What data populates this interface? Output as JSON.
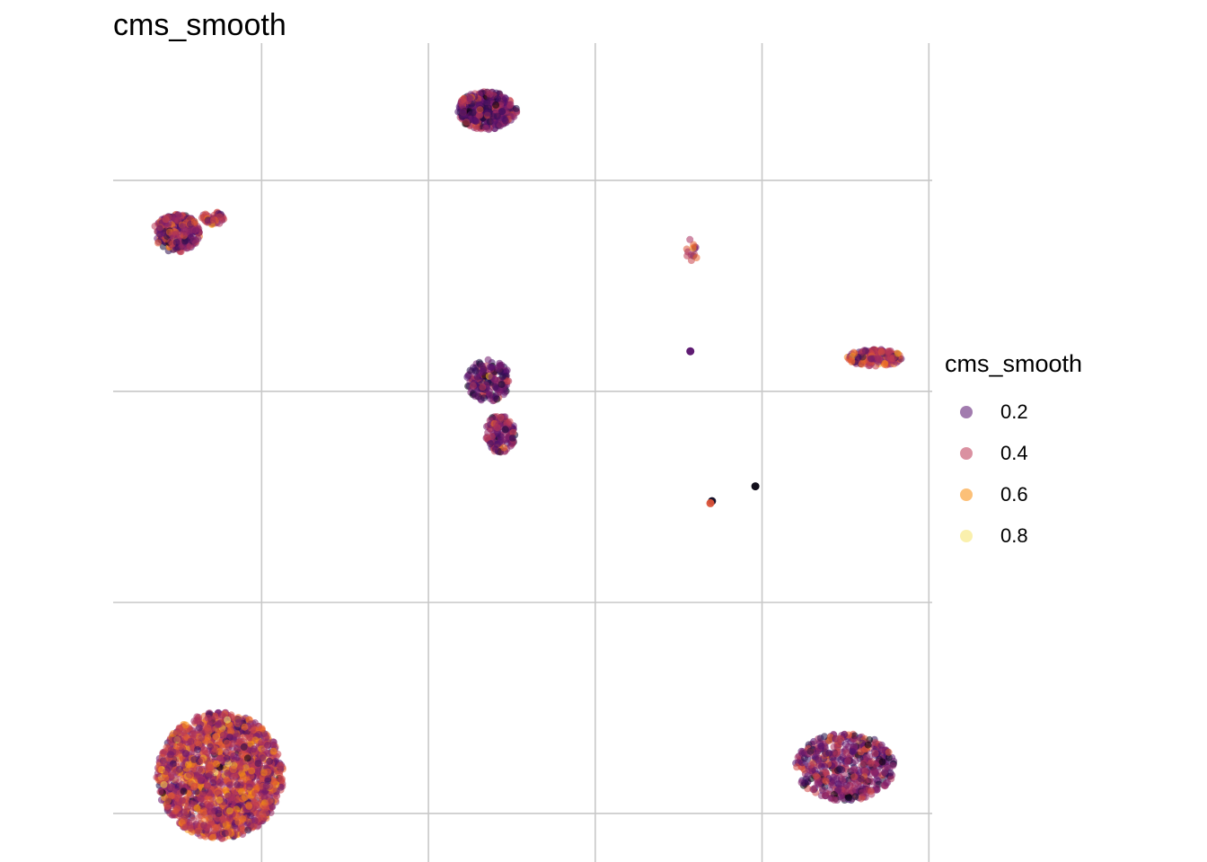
{
  "chart_data": {
    "type": "scatter",
    "title": "cms_smooth",
    "xlabel": "",
    "ylabel": "",
    "grid": true,
    "legend_position": "right",
    "legend": {
      "title": "cms_smooth",
      "entries": [
        {
          "label": "0.2",
          "color": "#56106E"
        },
        {
          "label": "0.4",
          "color": "#BB3754"
        },
        {
          "label": "0.6",
          "color": "#F98C0A"
        },
        {
          "label": "0.8",
          "color": "#F6E46A"
        }
      ]
    },
    "color_scale": {
      "name": "inferno",
      "stops": [
        "#000004",
        "#1B0C41",
        "#4A0C6B",
        "#781C6D",
        "#A52C60",
        "#CF4446",
        "#ED6925",
        "#FB9B06",
        "#F7D13D",
        "#FCFFA4"
      ]
    },
    "x_gridlines": [
      1,
      2,
      3,
      4,
      5
    ],
    "y_gridlines": [
      1,
      2,
      3,
      4
    ],
    "xlim": [
      0.11,
      5.02
    ],
    "ylim": [
      0.77,
      4.65
    ],
    "clusters": [
      {
        "id": "top-center",
        "cx": 2.35,
        "cy": 4.33,
        "rx": 0.18,
        "ry": 0.09,
        "n": 420,
        "mean": 0.3
      },
      {
        "id": "top-left",
        "cx": 0.49,
        "cy": 3.75,
        "rx": 0.14,
        "ry": 0.09,
        "n": 260,
        "mean": 0.38
      },
      {
        "id": "top-left-tail",
        "cx": 0.71,
        "cy": 3.82,
        "rx": 0.07,
        "ry": 0.03,
        "n": 50,
        "mean": 0.45
      },
      {
        "id": "mid-upper",
        "cx": 2.36,
        "cy": 3.05,
        "rx": 0.13,
        "ry": 0.1,
        "n": 180,
        "mean": 0.3
      },
      {
        "id": "mid-lower",
        "cx": 2.43,
        "cy": 2.8,
        "rx": 0.09,
        "ry": 0.09,
        "n": 140,
        "mean": 0.35
      },
      {
        "id": "right-strip",
        "cx": 4.68,
        "cy": 3.16,
        "rx": 0.17,
        "ry": 0.04,
        "n": 160,
        "mean": 0.5
      },
      {
        "id": "small-tall",
        "cx": 3.58,
        "cy": 3.67,
        "rx": 0.04,
        "ry": 0.06,
        "n": 14,
        "mean": 0.5
      },
      {
        "id": "bottom-left",
        "cx": 0.75,
        "cy": 1.18,
        "rx": 0.38,
        "ry": 0.3,
        "n": 1800,
        "mean": 0.48
      },
      {
        "id": "bottom-right",
        "cx": 4.5,
        "cy": 1.22,
        "rx": 0.3,
        "ry": 0.16,
        "n": 520,
        "mean": 0.35
      }
    ],
    "points": [
      {
        "x": 3.57,
        "y": 3.19,
        "value": 0.25
      },
      {
        "x": 3.7,
        "y": 2.48,
        "value": 0.05
      },
      {
        "x": 3.69,
        "y": 2.47,
        "value": 0.6
      },
      {
        "x": 3.96,
        "y": 2.55,
        "value": 0.02
      }
    ]
  }
}
